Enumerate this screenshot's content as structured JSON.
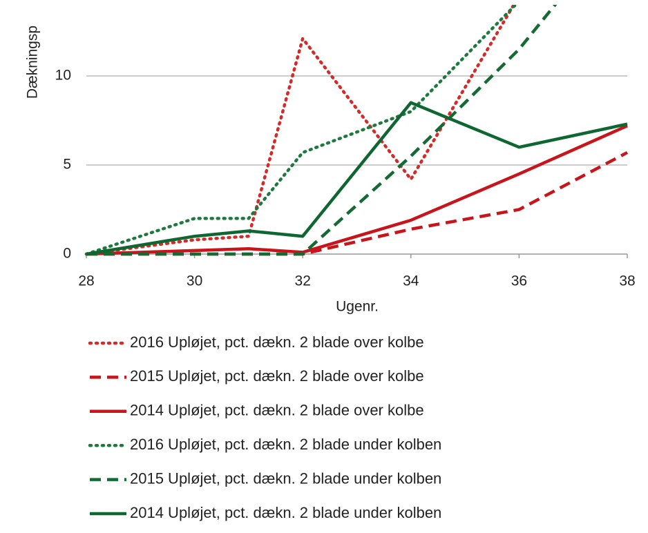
{
  "chart_data": {
    "type": "line",
    "y_label": "Dækningsp",
    "x_label": "Ugenr.",
    "x": [
      28,
      30,
      31,
      32,
      34,
      36,
      38
    ],
    "xlim": [
      28,
      38
    ],
    "xticks": [
      28,
      30,
      32,
      34,
      36,
      38
    ],
    "ylim": [
      0,
      14
    ],
    "yticks": [
      0,
      5,
      10
    ],
    "grid": true,
    "series": [
      {
        "name": "2016 Upløjet, pct. dækn. 2 blade over kolbe",
        "color": "#d42a2a",
        "dash": "dotted",
        "values": [
          0,
          0.8,
          1,
          12.1,
          4.2,
          14.5,
          null
        ]
      },
      {
        "name": "2015 Upløjet, pct. dækn. 2 blade over kolbe",
        "color": "#c8141b",
        "dash": "dashed",
        "values": [
          0,
          0,
          0,
          0,
          1.4,
          2.5,
          5.7
        ]
      },
      {
        "name": "2014 Upløjet, pct. dækn. 2 blade over kolbe",
        "color": "#c8141b",
        "dash": "solid",
        "values": [
          0,
          0.2,
          0.3,
          0.1,
          1.9,
          4.5,
          7.2
        ]
      },
      {
        "name": "2016 Upløjet, pct. dækn. 2 blade under kolben",
        "color": "#1d7a3e",
        "dash": "dotted",
        "values": [
          0,
          2,
          2,
          5.7,
          8,
          14.2,
          null
        ]
      },
      {
        "name": "2015 Upløjet, pct. dækn. 2 blade under kolben",
        "color": "#136b33",
        "dash": "dashed",
        "values": [
          0,
          0,
          0,
          0,
          5.5,
          11.5,
          19
        ]
      },
      {
        "name": "2014 Upløjet, pct. dækn. 2 blade under kolben",
        "color": "#0e6630",
        "dash": "solid",
        "values": [
          0,
          1,
          1.3,
          1,
          8.5,
          6,
          7.3
        ]
      }
    ]
  }
}
